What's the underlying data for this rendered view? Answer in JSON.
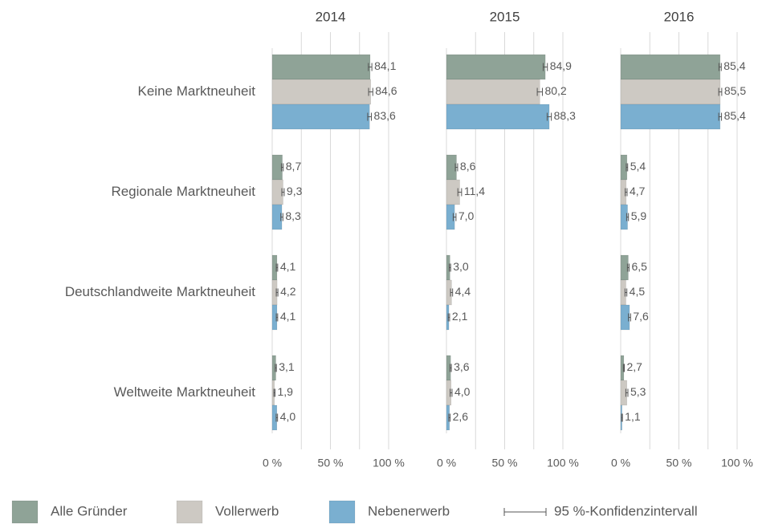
{
  "chart_data": {
    "type": "bar",
    "orientation": "horizontal",
    "categories": [
      "Keine Marktneuheit",
      "Regionale Marktneuheit",
      "Deutschlandweite Marktneuheit",
      "Weltweite Marktneuheit"
    ],
    "series": [
      {
        "name": "Alle Gründer",
        "color": "#8fa397"
      },
      {
        "name": "Vollerwerb",
        "color": "#cdc9c3"
      },
      {
        "name": "Nebenerwerb",
        "color": "#7aafd0"
      }
    ],
    "error_label": "95 %-Konfidenzintervall",
    "xlim": [
      0,
      100
    ],
    "xticks": [
      {
        "value": 0,
        "label": "0 %"
      },
      {
        "value": 50,
        "label": "50 %"
      },
      {
        "value": 100,
        "label": "100 %"
      }
    ],
    "xgrid": [
      25,
      50,
      75,
      100
    ],
    "panels": [
      {
        "title": "2014",
        "series": [
          {
            "values": [
              84.1,
              8.7,
              4.1,
              3.1
            ],
            "value_labels": [
              "84,1",
              "8,7",
              "4,1",
              "3,1"
            ],
            "errors": [
              1.5,
              0.8,
              0.6,
              0.5
            ]
          },
          {
            "values": [
              84.6,
              9.3,
              4.2,
              1.9
            ],
            "value_labels": [
              "84,6",
              "9,3",
              "4,2",
              "1,9"
            ],
            "errors": [
              1.8,
              1.0,
              0.7,
              0.5
            ]
          },
          {
            "values": [
              83.6,
              8.3,
              4.1,
              4.0
            ],
            "value_labels": [
              "83,6",
              "8,3",
              "4,1",
              "4,0"
            ],
            "errors": [
              1.6,
              0.9,
              0.6,
              0.6
            ]
          }
        ]
      },
      {
        "title": "2015",
        "series": [
          {
            "values": [
              84.9,
              8.6,
              3.0,
              3.6
            ],
            "value_labels": [
              "84,9",
              "8,6",
              "3,0",
              "3,6"
            ],
            "errors": [
              1.8,
              1.0,
              0.6,
              0.6
            ]
          },
          {
            "values": [
              80.2,
              11.4,
              4.4,
              4.0
            ],
            "value_labels": [
              "80,2",
              "11,4",
              "4,4",
              "4,0"
            ],
            "errors": [
              2.2,
              1.6,
              0.9,
              0.8
            ]
          },
          {
            "values": [
              88.3,
              7.0,
              2.1,
              2.6
            ],
            "value_labels": [
              "88,3",
              "7,0",
              "2,1",
              "2,6"
            ],
            "errors": [
              1.8,
              1.2,
              0.6,
              0.6
            ]
          }
        ]
      },
      {
        "title": "2016",
        "series": [
          {
            "values": [
              85.4,
              5.4,
              6.5,
              2.7
            ],
            "value_labels": [
              "85,4",
              "5,4",
              "6,5",
              "2,7"
            ],
            "errors": [
              1.0,
              0.6,
              0.7,
              0.4
            ]
          },
          {
            "values": [
              85.5,
              4.7,
              4.5,
              5.3
            ],
            "value_labels": [
              "85,5",
              "4,7",
              "4,5",
              "5,3"
            ],
            "errors": [
              1.3,
              0.8,
              0.8,
              0.9
            ]
          },
          {
            "values": [
              85.4,
              5.9,
              7.6,
              1.1
            ],
            "value_labels": [
              "85,4",
              "5,9",
              "7,6",
              "1,1"
            ],
            "errors": [
              1.2,
              0.8,
              0.9,
              0.4
            ]
          }
        ]
      }
    ]
  }
}
